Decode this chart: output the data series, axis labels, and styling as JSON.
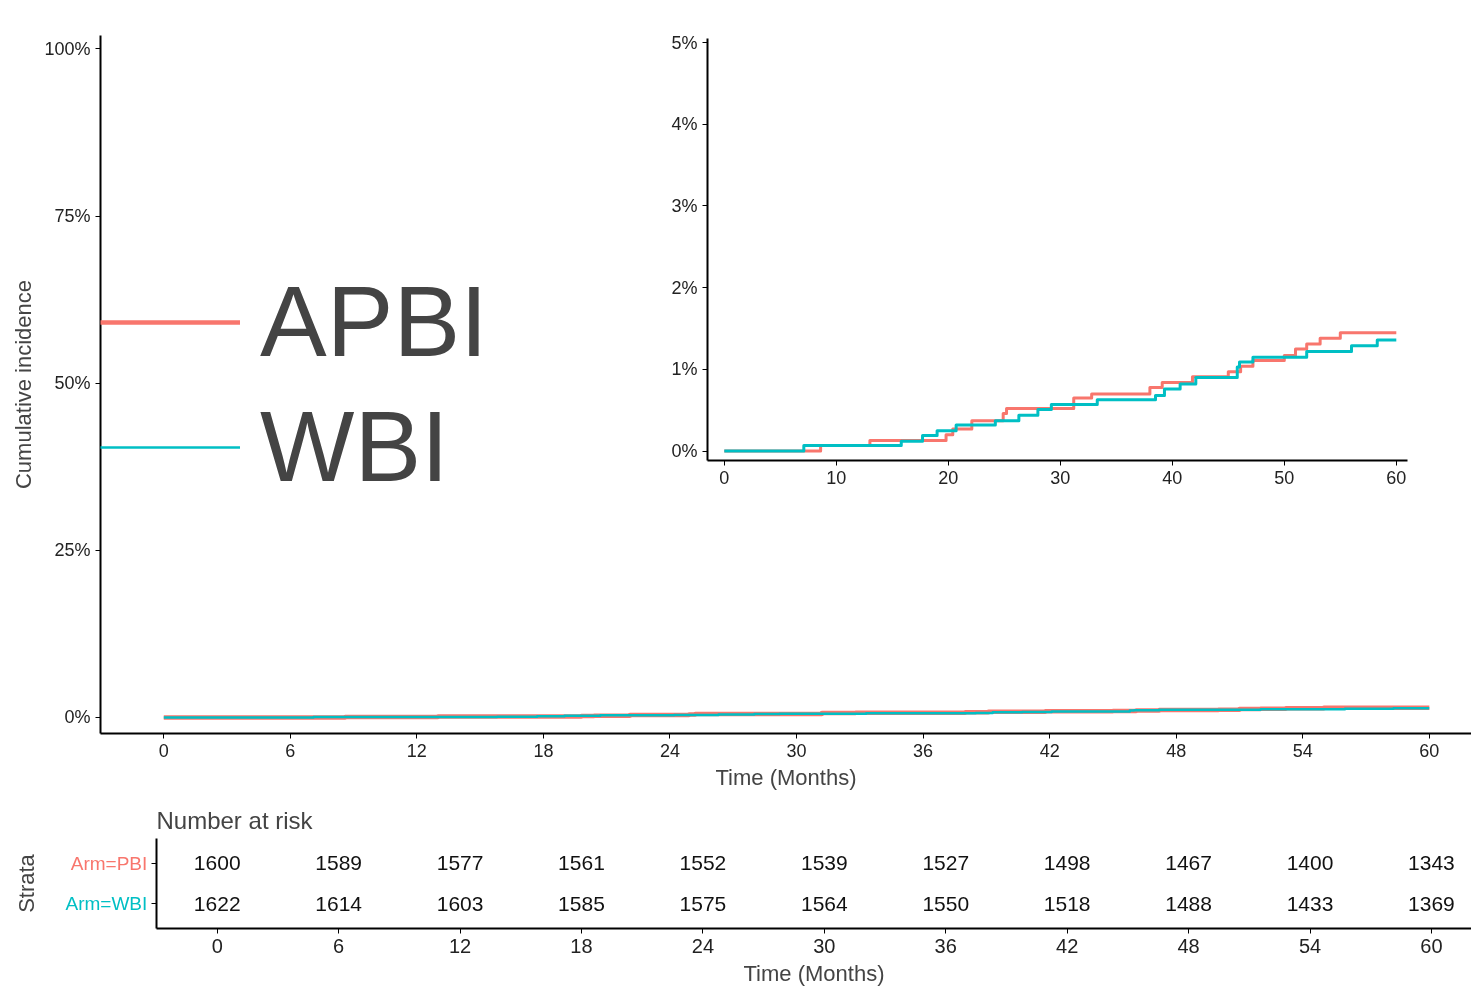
{
  "chart_data": [
    {
      "type": "step",
      "xlabel": "Time (Months)",
      "ylabel": "Cumulative incidence",
      "xlim": [
        -3,
        62
      ],
      "ylim": [
        -2.4,
        102
      ],
      "xticks": [
        0,
        6,
        12,
        18,
        24,
        30,
        36,
        42,
        48,
        54,
        60
      ],
      "yticks": [
        {
          "value": 0,
          "label": "0%"
        },
        {
          "value": 25,
          "label": "25%"
        },
        {
          "value": 50,
          "label": "50%"
        },
        {
          "value": 75,
          "label": "75%"
        },
        {
          "value": 100,
          "label": "100%"
        }
      ],
      "grid": false,
      "legend": "left",
      "line_style": "solid",
      "series": [
        {
          "name": "APBI",
          "color": "#f8766d",
          "x": [
            0,
            8.6,
            13.0,
            19.8,
            20.4,
            22.1,
            24.9,
            25.2,
            31.2,
            32.8,
            38.0,
            39.1,
            41.8,
            45.0,
            46.1,
            47.2,
            50.0,
            51.0,
            52.0,
            53.2,
            55.0,
            60
          ],
          "values": [
            0,
            0.07,
            0.13,
            0.2,
            0.27,
            0.37,
            0.46,
            0.52,
            0.65,
            0.7,
            0.78,
            0.84,
            0.91,
            0.97,
            1.04,
            1.11,
            1.17,
            1.25,
            1.31,
            1.38,
            1.45,
            1.45
          ]
        },
        {
          "name": "WBI",
          "color": "#00bfc4",
          "x": [
            0,
            7.1,
            15.8,
            17.7,
            19.0,
            20.7,
            24.2,
            26.3,
            28.0,
            29.2,
            33.3,
            38.5,
            39.3,
            40.7,
            42.1,
            45.8,
            46.0,
            47.2,
            52.0,
            56.0,
            58.3,
            60
          ],
          "values": [
            0,
            0.07,
            0.12,
            0.19,
            0.25,
            0.32,
            0.37,
            0.44,
            0.51,
            0.57,
            0.63,
            0.68,
            0.76,
            0.82,
            0.9,
            1.03,
            1.09,
            1.15,
            1.22,
            1.29,
            1.36,
            1.36
          ]
        }
      ]
    },
    {
      "type": "step",
      "xlim": [
        -1.5,
        61
      ],
      "ylim": [
        -0.115,
        5.05
      ],
      "xticks": [
        0,
        10,
        20,
        30,
        40,
        50,
        60
      ],
      "yticks": [
        {
          "value": 0,
          "label": "0%"
        },
        {
          "value": 1,
          "label": "1%"
        },
        {
          "value": 2,
          "label": "2%"
        },
        {
          "value": 3,
          "label": "3%"
        },
        {
          "value": 4,
          "label": "4%"
        },
        {
          "value": 5,
          "label": "5%"
        }
      ],
      "grid": false,
      "line_style": "solid",
      "series": [
        {
          "color": "#f8766d",
          "x": [
            0,
            8.6,
            13.0,
            19.8,
            20.4,
            22.1,
            24.9,
            25.2,
            31.2,
            32.8,
            38.0,
            39.1,
            41.8,
            45.0,
            46.1,
            47.2,
            50.0,
            51.0,
            52.0,
            53.2,
            55.0,
            60
          ],
          "values": [
            0,
            0.07,
            0.13,
            0.2,
            0.27,
            0.37,
            0.46,
            0.52,
            0.65,
            0.7,
            0.78,
            0.84,
            0.91,
            0.97,
            1.04,
            1.11,
            1.17,
            1.25,
            1.31,
            1.38,
            1.45,
            1.45
          ]
        },
        {
          "color": "#00bfc4",
          "x": [
            0,
            7.1,
            15.8,
            17.7,
            19.0,
            20.7,
            24.2,
            26.3,
            28.0,
            29.2,
            33.3,
            38.5,
            39.3,
            40.7,
            42.1,
            45.8,
            46.0,
            47.2,
            52.0,
            56.0,
            58.3,
            60
          ],
          "values": [
            0,
            0.07,
            0.12,
            0.19,
            0.25,
            0.32,
            0.37,
            0.44,
            0.51,
            0.57,
            0.63,
            0.68,
            0.76,
            0.82,
            0.9,
            1.03,
            1.09,
            1.15,
            1.22,
            1.29,
            1.36,
            1.36
          ]
        }
      ]
    },
    {
      "type": "heatmap",
      "title": "Number at risk",
      "xlabel": "Time (Months)",
      "ylabel": "Strata",
      "categories": [
        "0",
        "6",
        "12",
        "18",
        "24",
        "30",
        "36",
        "42",
        "48",
        "54",
        "60"
      ],
      "y_categories": [
        "Arm=PBI",
        "Arm=WBI"
      ],
      "colors": [
        "#f8766d",
        "#00bfc4"
      ],
      "data_labels": true,
      "cells": [
        [
          1600,
          1589,
          1577,
          1561,
          1552,
          1539,
          1527,
          1498,
          1467,
          1400,
          1343
        ],
        [
          1622,
          1614,
          1603,
          1585,
          1575,
          1564,
          1550,
          1518,
          1488,
          1433,
          1369
        ]
      ]
    }
  ]
}
